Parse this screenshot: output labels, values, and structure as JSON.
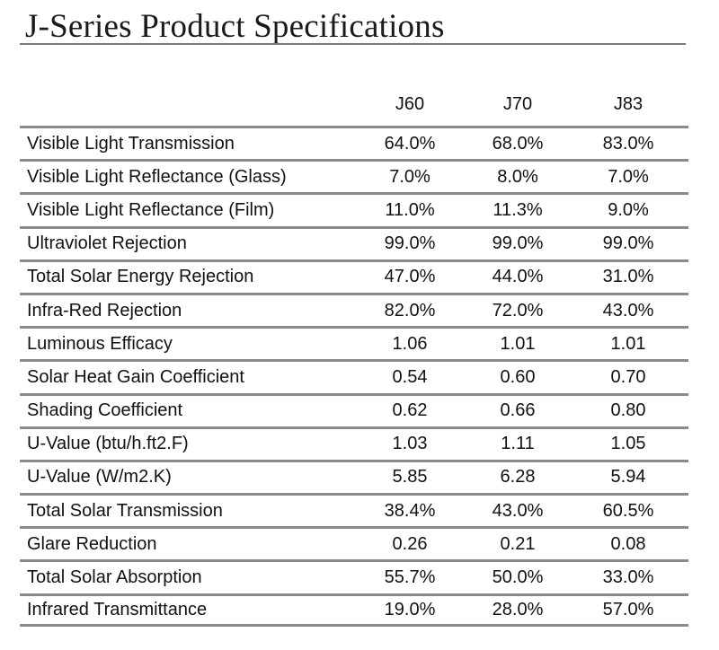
{
  "document": {
    "title": "J-Series Product Specifications"
  },
  "table": {
    "columns": [
      "J60",
      "J70",
      "J83"
    ],
    "rows": [
      {
        "label": "Visible Light Transmission",
        "values": [
          "64.0%",
          "68.0%",
          "83.0%"
        ]
      },
      {
        "label": "Visible Light Reflectance (Glass)",
        "values": [
          "7.0%",
          "8.0%",
          "7.0%"
        ]
      },
      {
        "label": "Visible Light Reflectance (Film)",
        "values": [
          "11.0%",
          "11.3%",
          "9.0%"
        ]
      },
      {
        "label": "Ultraviolet Rejection",
        "values": [
          "99.0%",
          "99.0%",
          "99.0%"
        ]
      },
      {
        "label": "Total Solar Energy Rejection",
        "values": [
          "47.0%",
          "44.0%",
          "31.0%"
        ]
      },
      {
        "label": "Infra-Red Rejection",
        "values": [
          "82.0%",
          "72.0%",
          "43.0%"
        ]
      },
      {
        "label": "Luminous Efficacy",
        "values": [
          "1.06",
          "1.01",
          "1.01"
        ]
      },
      {
        "label": "Solar Heat Gain Coefficient",
        "values": [
          "0.54",
          "0.60",
          "0.70"
        ]
      },
      {
        "label": "Shading Coefficient",
        "values": [
          "0.62",
          "0.66",
          "0.80"
        ]
      },
      {
        "label": "U-Value (btu/h.ft2.F)",
        "values": [
          "1.03",
          "1.11",
          "1.05"
        ]
      },
      {
        "label": "U-Value (W/m2.K)",
        "values": [
          "5.85",
          "6.28",
          "5.94"
        ]
      },
      {
        "label": "Total Solar Transmission",
        "values": [
          "38.4%",
          "43.0%",
          "60.5%"
        ]
      },
      {
        "label": "Glare Reduction",
        "values": [
          "0.26",
          "0.21",
          "0.08"
        ]
      },
      {
        "label": "Total Solar Absorption",
        "values": [
          "55.7%",
          "50.0%",
          "33.0%"
        ]
      },
      {
        "label": "Infrared Transmittance",
        "values": [
          "19.0%",
          "28.0%",
          "57.0%"
        ]
      }
    ]
  }
}
